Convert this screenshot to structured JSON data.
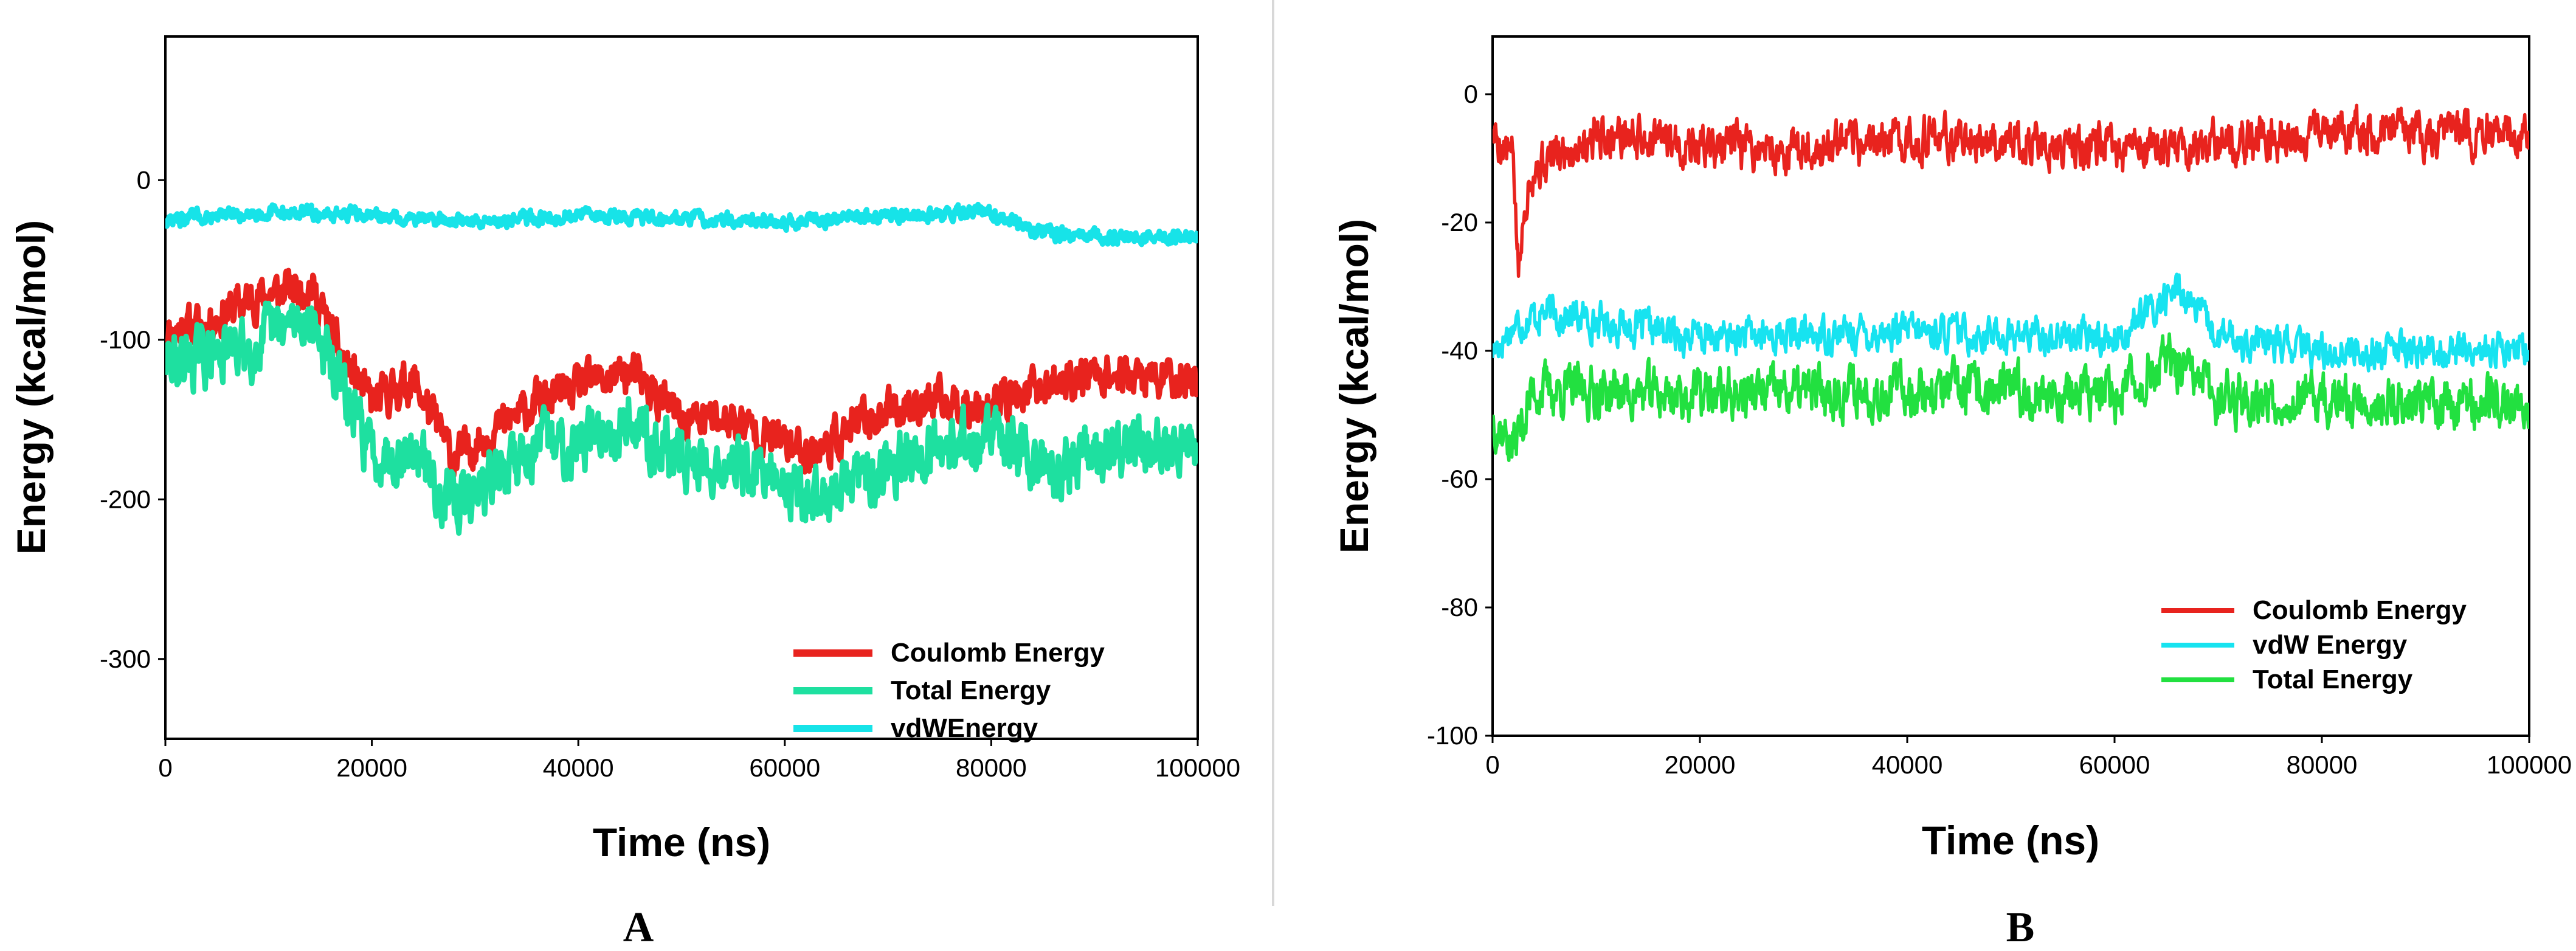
{
  "chart_data": [
    {
      "type": "line",
      "panel_label": "A",
      "xlabel": "Time (ns)",
      "ylabel": "Energy (kcal/mol)",
      "xlim": [
        0,
        100000
      ],
      "ylim": [
        -350,
        90
      ],
      "x_ticks": [
        0,
        20000,
        40000,
        60000,
        80000,
        100000
      ],
      "x_tick_labels": [
        "0",
        "20000",
        "40000",
        "60000",
        "80000",
        "100000"
      ],
      "y_ticks": [
        0,
        -100,
        -200,
        -300
      ],
      "y_tick_labels": [
        "0",
        "-100",
        "-200",
        "-300"
      ],
      "grid": false,
      "legend_position": "bottom-right",
      "series": [
        {
          "name": "Coulomb Energy",
          "color": "#e8231e",
          "noise": 10,
          "seed": 11,
          "x": [
            0,
            4000,
            8000,
            14000,
            17000,
            20000,
            24000,
            28000,
            31000,
            36000,
            40000,
            45000,
            50000,
            55000,
            60000,
            63000,
            68000,
            72000,
            76000,
            80000,
            85000,
            90000,
            95000,
            100000
          ],
          "values": [
            -95,
            -90,
            -75,
            -65,
            -110,
            -140,
            -125,
            -175,
            -160,
            -140,
            -130,
            -120,
            -150,
            -150,
            -165,
            -170,
            -150,
            -140,
            -140,
            -140,
            -130,
            -120,
            -125,
            -125
          ]
        },
        {
          "name": "Total Energy",
          "color": "#1ee0a0",
          "noise": 14,
          "seed": 29,
          "x": [
            0,
            4000,
            8000,
            14000,
            17000,
            20000,
            24000,
            28000,
            31000,
            36000,
            40000,
            45000,
            50000,
            55000,
            60000,
            63000,
            68000,
            72000,
            76000,
            80000,
            85000,
            90000,
            95000,
            100000
          ],
          "values": [
            -115,
            -110,
            -105,
            -85,
            -130,
            -170,
            -170,
            -205,
            -190,
            -165,
            -165,
            -150,
            -175,
            -180,
            -190,
            -200,
            -185,
            -170,
            -165,
            -160,
            -180,
            -175,
            -168,
            -165
          ]
        },
        {
          "name": "vdWEnergy",
          "color": "#17e3e8",
          "noise": 3.5,
          "seed": 47,
          "x": [
            0,
            10000,
            20000,
            30000,
            40000,
            50000,
            60000,
            70000,
            80000,
            84000,
            90000,
            100000
          ],
          "values": [
            -25,
            -20,
            -22,
            -26,
            -22,
            -24,
            -26,
            -22,
            -20,
            -32,
            -36,
            -36
          ]
        }
      ]
    },
    {
      "type": "line",
      "panel_label": "B",
      "xlabel": "Time (ns)",
      "ylabel": "Energy (kcal/mol)",
      "xlim": [
        0,
        100000
      ],
      "ylim": [
        -100,
        9
      ],
      "x_ticks": [
        0,
        20000,
        40000,
        60000,
        80000,
        100000
      ],
      "x_tick_labels": [
        "0",
        "20000",
        "40000",
        "60000",
        "80000",
        "100000"
      ],
      "y_ticks": [
        0,
        -20,
        -40,
        -60,
        -80,
        -100
      ],
      "y_tick_labels": [
        "0",
        "-20",
        "-40",
        "-60",
        "-80",
        "-100"
      ],
      "grid": false,
      "legend_position": "bottom-right",
      "series": [
        {
          "name": "Coulomb Energy",
          "color": "#e8231e",
          "noise": 2.8,
          "seed": 5,
          "x": [
            0,
            2000,
            2500,
            3500,
            10000,
            20000,
            30000,
            40000,
            50000,
            60000,
            70000,
            80000,
            90000,
            100000
          ],
          "values": [
            -6,
            -10,
            -28,
            -12,
            -6,
            -8,
            -9,
            -7,
            -7,
            -9,
            -8,
            -6,
            -6,
            -6
          ]
        },
        {
          "name": "vdW Energy",
          "color": "#17e3f0",
          "noise": 2.2,
          "seed": 17,
          "x": [
            0,
            2000,
            5000,
            20000,
            40000,
            60000,
            65000,
            66000,
            70000,
            80000,
            90000,
            100000
          ],
          "values": [
            -40,
            -36,
            -34,
            -38,
            -37,
            -38,
            -32,
            -30,
            -38,
            -40,
            -40,
            -40
          ]
        },
        {
          "name": "Total Energy",
          "color": "#22e040",
          "noise": 3.2,
          "seed": 37,
          "x": [
            0,
            2000,
            4000,
            20000,
            40000,
            60000,
            65000,
            70000,
            80000,
            90000,
            100000
          ],
          "values": [
            -50,
            -55,
            -46,
            -47,
            -46,
            -47,
            -42,
            -47,
            -48,
            -48,
            -48
          ]
        }
      ]
    }
  ]
}
